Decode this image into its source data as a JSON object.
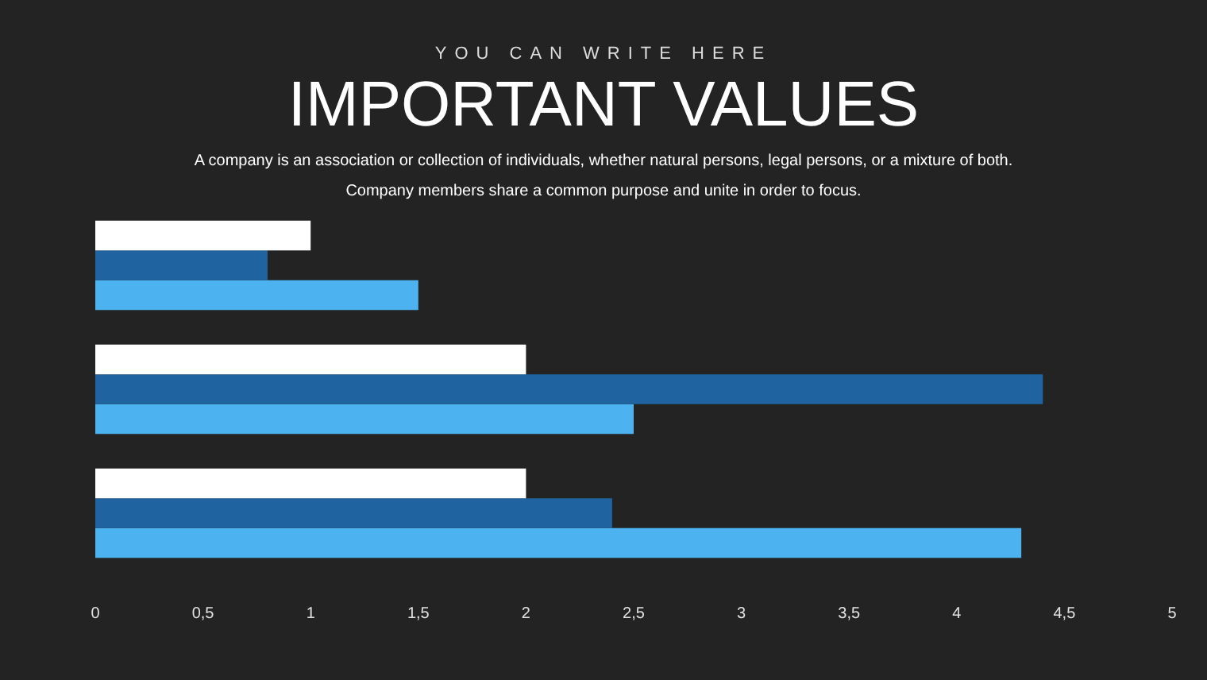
{
  "chart_data": {
    "type": "bar",
    "orientation": "horizontal",
    "title": "IMPORTANT VALUES",
    "subtitle": "YOU CAN WRITE HERE",
    "annotations": [
      "A company is an association or collection of individuals, whether natural persons, legal persons, or a mixture of both. Company members share a common purpose and unite in order to focus."
    ],
    "categories": [
      null,
      null,
      null
    ],
    "series": [
      {
        "color": "#ffffff",
        "values": [
          1.0,
          2.0,
          2.0
        ]
      },
      {
        "color": "#1f64a0",
        "values": [
          0.8,
          4.4,
          2.4
        ]
      },
      {
        "color": "#4db3f0",
        "values": [
          1.5,
          2.5,
          4.3
        ]
      }
    ],
    "xlim": [
      0,
      5
    ],
    "xticks": [
      0,
      {
        "value": 0.5,
        "label": "0,5"
      },
      1,
      {
        "value": 1.5,
        "label": "1,5"
      },
      2,
      {
        "value": 2.5,
        "label": "2,5"
      },
      3,
      {
        "value": 3.5,
        "label": "3,5"
      },
      4,
      {
        "value": 4.5,
        "label": "4,5"
      },
      5
    ],
    "grid": false,
    "legend": false
  }
}
